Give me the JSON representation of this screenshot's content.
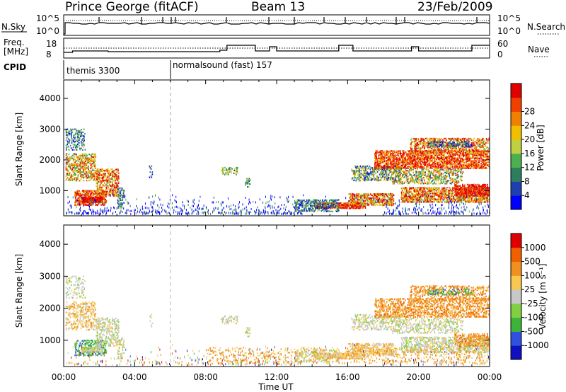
{
  "header": {
    "station": "Prince George (fitACF)",
    "beam": "Beam 13",
    "date": "23/Feb/2009"
  },
  "nsky_panel": {
    "left_label": "N.Sky",
    "right_label": "N.Search",
    "left_ticks": [
      "10^5",
      "10^0"
    ],
    "right_ticks": [
      "10^5",
      "10^0"
    ]
  },
  "freq_panel": {
    "left_label_line1": "Freq.",
    "left_label_line2": "[MHz]",
    "left_ticks": [
      "18",
      "8"
    ],
    "right_label": "Nave",
    "right_ticks": [
      "60",
      "0"
    ]
  },
  "cpid_panel": {
    "label": "CPID",
    "programs": [
      {
        "name": "themis 3300",
        "start_hour": 0
      },
      {
        "name": "normalsound (fast) 157",
        "start_hour": 6
      }
    ]
  },
  "chart_data": [
    {
      "type": "heatmap",
      "panel": "power",
      "ylabel": "Slant Range [km]",
      "yticks": [
        "1000",
        "2000",
        "3000",
        "4000"
      ],
      "ylim": [
        180,
        4600
      ],
      "xlim": [
        0,
        24
      ],
      "colorbar": {
        "label": "Power [dB]",
        "ticks": [
          "4",
          "8",
          "12",
          "16",
          "20",
          "24",
          "28"
        ],
        "colors": [
          "#0000ff",
          "#1f3fb0",
          "#2e7d5e",
          "#4caf50",
          "#c0d040",
          "#f0c000",
          "#f08000",
          "#f04000",
          "#e00000"
        ]
      }
    },
    {
      "type": "heatmap",
      "panel": "velocity",
      "ylabel": "Slant Range [km]",
      "yticks": [
        "1000",
        "2000",
        "3000",
        "4000"
      ],
      "ylim": [
        180,
        4600
      ],
      "xlim": [
        0,
        24
      ],
      "xlabel": "Time UT",
      "xticks": [
        "00:00",
        "04:00",
        "08:00",
        "12:00",
        "16:00",
        "20:00",
        "00:00"
      ],
      "colorbar": {
        "label": "Velocity [m s⁻¹]",
        "ticks": [
          "1000",
          "500",
          "100",
          "25",
          "-25",
          "-100",
          "-500",
          "-1000"
        ],
        "colors": [
          "#1010c0",
          "#3050e0",
          "#3cb43c",
          "#80d040",
          "#c8c8c8",
          "#f8c850",
          "#f09020",
          "#f06000",
          "#e00000"
        ]
      }
    }
  ]
}
